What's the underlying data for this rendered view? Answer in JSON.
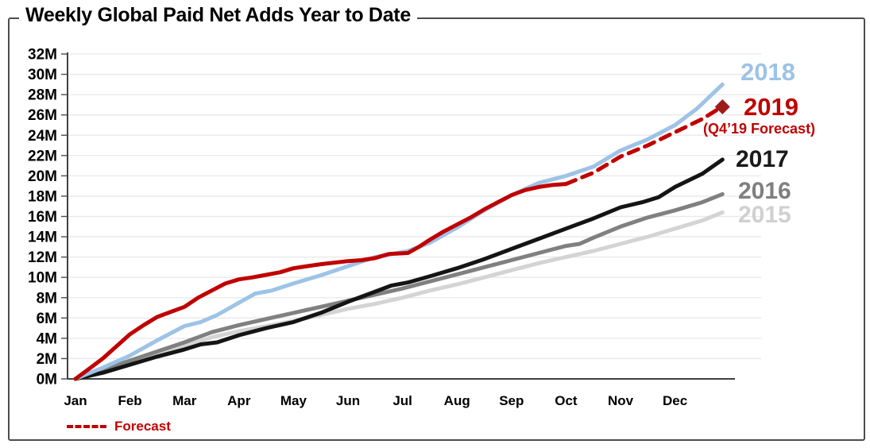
{
  "title": "Weekly Global Paid Net Adds Year to Date",
  "legend": {
    "right_labels": [
      {
        "id": "2018",
        "label": "2018",
        "color": "#9dc3e6"
      },
      {
        "id": "2019",
        "label": "2019",
        "color": "#c00000"
      },
      {
        "id": "forecast_note",
        "label": "(Q4’19 Forecast)",
        "color": "#c00000"
      },
      {
        "id": "2017",
        "label": "2017",
        "color": "#1a1a1a"
      },
      {
        "id": "2016",
        "label": "2016",
        "color": "#7f7f7f"
      },
      {
        "id": "2015",
        "label": "2015",
        "color": "#d0d0d0"
      }
    ],
    "bottom_key": {
      "label": "Forecast",
      "color": "#c00000",
      "style": "dashed"
    }
  },
  "chart_data": {
    "type": "line",
    "title": "Weekly Global Paid Net Adds Year to Date",
    "xlabel": "",
    "ylabel": "",
    "x_unit": "month index (Jan=0 ... Dec=11, year end=11.87)",
    "y_unit": "cumulative paid net adds, millions",
    "ylim": [
      0,
      32
    ],
    "y_tick_step": 2,
    "y_tick_suffix": "M",
    "grid": true,
    "legend_position": "right",
    "categories": [
      "Jan",
      "Feb",
      "Mar",
      "Apr",
      "May",
      "Jun",
      "Jul",
      "Aug",
      "Sep",
      "Oct",
      "Nov",
      "Dec"
    ],
    "series": [
      {
        "name": "2015",
        "color": "#d4d4d4",
        "width": 5,
        "dashed": false,
        "points": [
          [
            0,
            0
          ],
          [
            0.5,
            0.8
          ],
          [
            1,
            1.6
          ],
          [
            1.5,
            2.4
          ],
          [
            2,
            3.2
          ],
          [
            2.5,
            4.1
          ],
          [
            3,
            4.7
          ],
          [
            3.5,
            5.2
          ],
          [
            4,
            5.7
          ],
          [
            4.5,
            6.3
          ],
          [
            5,
            6.9
          ],
          [
            5.5,
            7.4
          ],
          [
            6,
            8.0
          ],
          [
            6.5,
            8.7
          ],
          [
            7,
            9.3
          ],
          [
            7.5,
            10.0
          ],
          [
            8,
            10.7
          ],
          [
            8.5,
            11.4
          ],
          [
            9,
            12.0
          ],
          [
            9.5,
            12.6
          ],
          [
            10,
            13.3
          ],
          [
            10.5,
            14.0
          ],
          [
            11,
            14.8
          ],
          [
            11.5,
            15.6
          ],
          [
            11.87,
            16.4
          ]
        ]
      },
      {
        "name": "2016",
        "color": "#808080",
        "width": 5,
        "dashed": false,
        "points": [
          [
            0,
            0
          ],
          [
            0.5,
            0.9
          ],
          [
            1,
            1.8
          ],
          [
            1.5,
            2.7
          ],
          [
            2,
            3.6
          ],
          [
            2.5,
            4.6
          ],
          [
            3,
            5.3
          ],
          [
            3.5,
            5.9
          ],
          [
            4,
            6.5
          ],
          [
            4.5,
            7.1
          ],
          [
            5,
            7.7
          ],
          [
            5.5,
            8.3
          ],
          [
            6,
            8.9
          ],
          [
            6.5,
            9.6
          ],
          [
            7,
            10.3
          ],
          [
            7.5,
            11.0
          ],
          [
            8,
            11.7
          ],
          [
            8.5,
            12.4
          ],
          [
            9,
            13.1
          ],
          [
            9.25,
            13.3
          ],
          [
            9.5,
            13.9
          ],
          [
            10,
            15.0
          ],
          [
            10.5,
            15.9
          ],
          [
            11,
            16.6
          ],
          [
            11.5,
            17.4
          ],
          [
            11.87,
            18.2
          ]
        ]
      },
      {
        "name": "2017",
        "color": "#141414",
        "width": 5,
        "dashed": false,
        "points": [
          [
            0,
            0
          ],
          [
            0.5,
            0.6
          ],
          [
            1,
            1.4
          ],
          [
            1.5,
            2.2
          ],
          [
            2,
            2.9
          ],
          [
            2.3,
            3.4
          ],
          [
            2.6,
            3.6
          ],
          [
            3,
            4.3
          ],
          [
            3.5,
            5.0
          ],
          [
            4,
            5.6
          ],
          [
            4.5,
            6.5
          ],
          [
            5,
            7.6
          ],
          [
            5.5,
            8.6
          ],
          [
            5.8,
            9.2
          ],
          [
            6.1,
            9.5
          ],
          [
            6.5,
            10.1
          ],
          [
            7,
            10.9
          ],
          [
            7.5,
            11.8
          ],
          [
            8,
            12.8
          ],
          [
            8.5,
            13.8
          ],
          [
            9,
            14.8
          ],
          [
            9.5,
            15.8
          ],
          [
            10,
            16.9
          ],
          [
            10.4,
            17.4
          ],
          [
            10.7,
            17.9
          ],
          [
            11,
            18.9
          ],
          [
            11.5,
            20.2
          ],
          [
            11.87,
            21.6
          ]
        ]
      },
      {
        "name": "2018",
        "color": "#9dc3e6",
        "width": 5,
        "dashed": false,
        "points": [
          [
            0,
            0
          ],
          [
            0.5,
            1.1
          ],
          [
            1,
            2.3
          ],
          [
            1.5,
            3.8
          ],
          [
            2,
            5.2
          ],
          [
            2.3,
            5.6
          ],
          [
            2.6,
            6.3
          ],
          [
            3,
            7.5
          ],
          [
            3.3,
            8.4
          ],
          [
            3.6,
            8.7
          ],
          [
            4,
            9.4
          ],
          [
            4.5,
            10.2
          ],
          [
            5,
            11.1
          ],
          [
            5.5,
            12.0
          ],
          [
            5.8,
            12.3
          ],
          [
            6.1,
            12.6
          ],
          [
            6.5,
            13.4
          ],
          [
            7,
            14.9
          ],
          [
            7.5,
            16.6
          ],
          [
            8,
            18.1
          ],
          [
            8.5,
            19.3
          ],
          [
            9,
            20.0
          ],
          [
            9.5,
            20.9
          ],
          [
            10,
            22.5
          ],
          [
            10.5,
            23.6
          ],
          [
            11,
            25.0
          ],
          [
            11.4,
            26.6
          ],
          [
            11.87,
            29.0
          ]
        ]
      },
      {
        "name": "2019",
        "color": "#c00000",
        "width": 5,
        "dashed": false,
        "points": [
          [
            0,
            0
          ],
          [
            0.25,
            1.0
          ],
          [
            0.5,
            2.0
          ],
          [
            0.75,
            3.2
          ],
          [
            1,
            4.4
          ],
          [
            1.25,
            5.3
          ],
          [
            1.5,
            6.1
          ],
          [
            1.75,
            6.6
          ],
          [
            2,
            7.1
          ],
          [
            2.25,
            8.0
          ],
          [
            2.5,
            8.7
          ],
          [
            2.75,
            9.4
          ],
          [
            3,
            9.8
          ],
          [
            3.25,
            10.0
          ],
          [
            3.5,
            10.25
          ],
          [
            3.75,
            10.5
          ],
          [
            4,
            10.9
          ],
          [
            4.25,
            11.1
          ],
          [
            4.5,
            11.3
          ],
          [
            5,
            11.6
          ],
          [
            5.25,
            11.7
          ],
          [
            5.5,
            11.9
          ],
          [
            5.75,
            12.3
          ],
          [
            6.1,
            12.4
          ],
          [
            6.3,
            13.0
          ],
          [
            6.5,
            13.7
          ],
          [
            6.75,
            14.5
          ],
          [
            7,
            15.2
          ],
          [
            7.25,
            15.9
          ],
          [
            7.5,
            16.7
          ],
          [
            7.75,
            17.4
          ],
          [
            8,
            18.1
          ],
          [
            8.25,
            18.6
          ],
          [
            8.5,
            18.9
          ],
          [
            8.75,
            19.1
          ],
          [
            9,
            19.2
          ]
        ]
      },
      {
        "name": "2019 Forecast",
        "color": "#c00000",
        "width": 5,
        "dashed": true,
        "points": [
          [
            9,
            19.2
          ],
          [
            9.5,
            20.3
          ],
          [
            10,
            21.9
          ],
          [
            10.5,
            23.0
          ],
          [
            11,
            24.3
          ],
          [
            11.5,
            25.6
          ],
          [
            11.8,
            26.6
          ]
        ]
      }
    ],
    "forecast_marker": {
      "x": 11.87,
      "y": 26.8,
      "shape": "diamond",
      "color": "#9e1b1b",
      "label": "Q4'19 Forecast end point"
    }
  }
}
